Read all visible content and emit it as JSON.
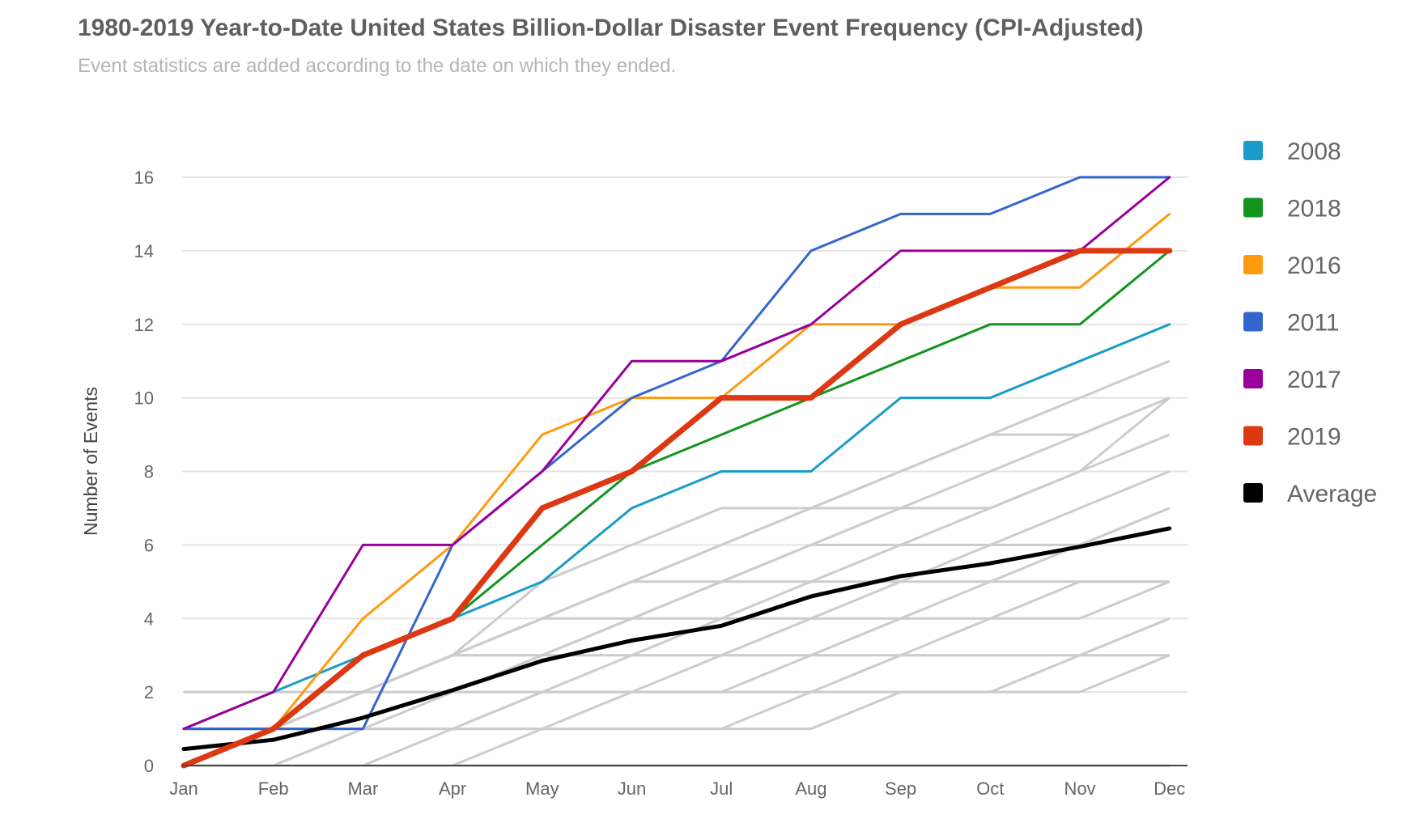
{
  "header": {
    "title": "1980-2019 Year-to-Date United States Billion-Dollar Disaster Event Frequency (CPI-Adjusted)",
    "subtitle": "Event statistics are added according to the date on which they ended."
  },
  "chart_data": {
    "type": "line",
    "title": "1980-2019 Year-to-Date United States Billion-Dollar Disaster Event Frequency (CPI-Adjusted)",
    "subtitle": "Event statistics are added according to the date on which they ended.",
    "xlabel": "",
    "ylabel": "Number of Events",
    "ylim": [
      0,
      16
    ],
    "yticks": [
      0,
      2,
      4,
      6,
      8,
      10,
      12,
      14,
      16
    ],
    "grid": true,
    "legend_position": "right",
    "categories": [
      "Jan",
      "Feb",
      "Mar",
      "Apr",
      "May",
      "Jun",
      "Jul",
      "Aug",
      "Sep",
      "Oct",
      "Nov",
      "Dec"
    ],
    "series": [
      {
        "name": "2008",
        "color": "#1a9bc8",
        "values": [
          1,
          2,
          3,
          4,
          5,
          7,
          8,
          8,
          10,
          10,
          11,
          12
        ]
      },
      {
        "name": "2018",
        "color": "#12951f",
        "values": [
          1,
          1,
          3,
          4,
          6,
          8,
          9,
          10,
          11,
          12,
          12,
          14
        ]
      },
      {
        "name": "2016",
        "color": "#ff9a0e",
        "values": [
          0,
          1,
          4,
          6,
          9,
          10,
          10,
          12,
          12,
          13,
          13,
          15
        ]
      },
      {
        "name": "2011",
        "color": "#3366cc",
        "values": [
          1,
          1,
          1,
          6,
          8,
          10,
          11,
          14,
          15,
          15,
          16,
          16
        ]
      },
      {
        "name": "2017",
        "color": "#990099",
        "values": [
          1,
          2,
          6,
          6,
          8,
          11,
          11,
          12,
          14,
          14,
          14,
          16
        ]
      },
      {
        "name": "2019",
        "color": "#dc3912",
        "values": [
          0,
          1,
          3,
          4,
          7,
          8,
          10,
          10,
          12,
          13,
          14,
          14
        ]
      },
      {
        "name": "Average",
        "color": "#000000",
        "values": [
          0.45,
          0.7,
          1.3,
          2.05,
          2.85,
          3.4,
          3.8,
          4.6,
          5.15,
          5.5,
          5.95,
          6.45
        ]
      }
    ],
    "background_series_color": "#cccccc",
    "background_series": [
      [
        0,
        0,
        0,
        0,
        0,
        0,
        0,
        0,
        0,
        0,
        0,
        0
      ],
      [
        0,
        0,
        0,
        0,
        1,
        1,
        1,
        1,
        2,
        2,
        2,
        3
      ],
      [
        0,
        0,
        0,
        1,
        1,
        1,
        1,
        2,
        2,
        2,
        3,
        3
      ],
      [
        0,
        0,
        1,
        1,
        1,
        2,
        2,
        2,
        3,
        3,
        3,
        4
      ],
      [
        0,
        0,
        1,
        1,
        2,
        2,
        2,
        3,
        3,
        4,
        4,
        5
      ],
      [
        0,
        1,
        1,
        1,
        2,
        2,
        3,
        3,
        4,
        4,
        5,
        5
      ],
      [
        1,
        1,
        1,
        2,
        2,
        3,
        3,
        4,
        4,
        5,
        5,
        5
      ],
      [
        2,
        2,
        2,
        2,
        3,
        3,
        4,
        4,
        5,
        5,
        6,
        7
      ],
      [
        0,
        1,
        2,
        3,
        3,
        4,
        4,
        5,
        5,
        6,
        6,
        7
      ],
      [
        1,
        1,
        2,
        3,
        4,
        4,
        5,
        5,
        6,
        6,
        7,
        8
      ],
      [
        0,
        1,
        2,
        3,
        3,
        4,
        5,
        6,
        6,
        7,
        8,
        9
      ],
      [
        0,
        1,
        2,
        3,
        4,
        5,
        5,
        6,
        7,
        7,
        8,
        10
      ],
      [
        1,
        1,
        2,
        3,
        4,
        5,
        6,
        7,
        7,
        8,
        9,
        10
      ],
      [
        0,
        1,
        2,
        3,
        5,
        6,
        7,
        7,
        8,
        9,
        9,
        10
      ],
      [
        1,
        1,
        2,
        3,
        4,
        5,
        6,
        7,
        8,
        9,
        10,
        11
      ]
    ]
  }
}
